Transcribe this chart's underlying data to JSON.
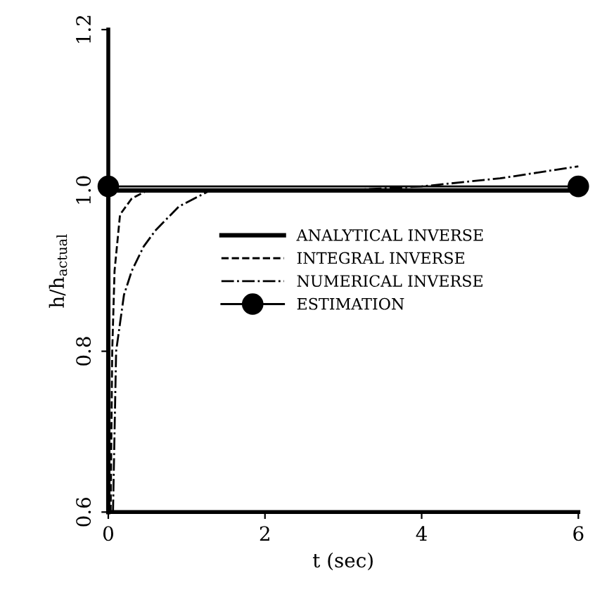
{
  "chart_data": {
    "type": "line",
    "xlabel": "t (sec)",
    "ylabel": "h/h$_{actual}$",
    "xlim": [
      0,
      6
    ],
    "ylim": [
      0.6,
      1.2
    ],
    "xticks": [
      0,
      2,
      4,
      6
    ],
    "yticks": [
      0.6,
      0.8,
      {
        "value": 1,
        "label": "1.0"
      },
      1.2
    ],
    "legend": "center",
    "grid": false,
    "series": [
      {
        "name": "ANALYTICAL INVERSE",
        "color": "#000000",
        "line_style": "solid",
        "marker": "none",
        "x": [
          0,
          0,
          0.5,
          1,
          2,
          3,
          4,
          5,
          6
        ],
        "values": [
          0.6,
          1.0,
          1.0,
          1.0,
          1.0,
          1.0,
          1.0,
          1.0,
          1.0
        ]
      },
      {
        "name": "INTEGRAL INVERSE",
        "color": "#000000",
        "line_style": "dashed",
        "marker": "none",
        "x": [
          0.03,
          0.05,
          0.08,
          0.15,
          0.3,
          0.5,
          1,
          2,
          3,
          4,
          5,
          6
        ],
        "values": [
          0.6,
          0.8,
          0.9,
          0.97,
          0.99,
          1.0,
          1.0,
          1.0,
          1.0,
          1.0,
          1.0,
          1.0
        ]
      },
      {
        "name": "NUMERICAL INVERSE",
        "color": "#000000",
        "line_style": "dashdot",
        "marker": "none",
        "x": [
          0.06,
          0.1,
          0.2,
          0.3,
          0.45,
          0.6,
          0.9,
          1.3,
          2,
          3,
          4,
          5,
          6
        ],
        "values": [
          0.6,
          0.8,
          0.87,
          0.9,
          0.93,
          0.95,
          0.98,
          1.0,
          1.0,
          1.0,
          1.005,
          1.015,
          1.03
        ]
      },
      {
        "name": "ESTIMATION",
        "color": "#000000",
        "line_style": "solid",
        "marker": "circle",
        "x": [
          0,
          6
        ],
        "values": [
          1.005,
          1.005
        ]
      }
    ]
  }
}
